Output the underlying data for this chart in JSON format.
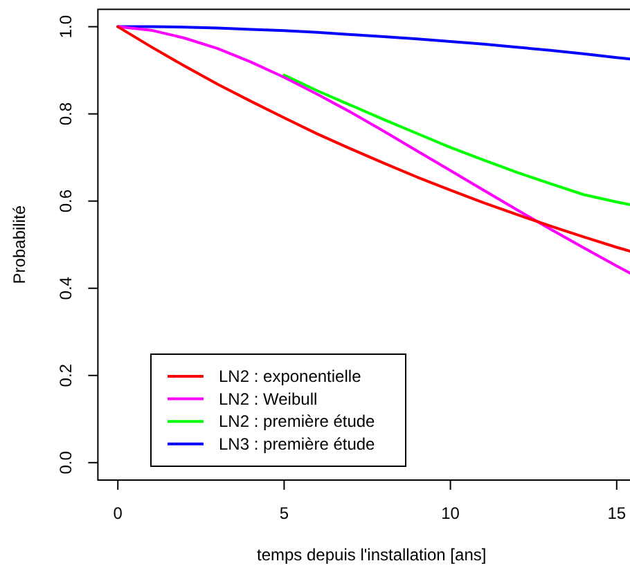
{
  "chart_data": {
    "type": "line",
    "xlabel": "temps depuis l'installation [ans]",
    "ylabel": "Probabilité",
    "x": [
      0,
      1,
      2,
      3,
      4,
      5,
      6,
      7,
      8,
      9,
      10,
      11,
      12,
      13,
      14,
      15,
      15.4
    ],
    "series": [
      {
        "name": "LN2 : exponentielle",
        "color": "#ff0000",
        "values": [
          1,
          0.954,
          0.91,
          0.868,
          0.829,
          0.791,
          0.754,
          0.72,
          0.687,
          0.655,
          0.625,
          0.596,
          0.569,
          0.543,
          0.518,
          0.494,
          0.485
        ]
      },
      {
        "name": "LN2 : Weibull",
        "color": "#ff00ff",
        "values": [
          1,
          0.992,
          0.974,
          0.95,
          0.919,
          0.884,
          0.845,
          0.804,
          0.76,
          0.715,
          0.67,
          0.625,
          0.58,
          0.536,
          0.493,
          0.451,
          0.435
        ]
      },
      {
        "name": "LN2 : première étude",
        "color": "#00ff00",
        "values": [
          null,
          null,
          null,
          null,
          null,
          0.889,
          0.853,
          0.82,
          0.787,
          0.755,
          0.723,
          0.694,
          0.666,
          0.64,
          0.615,
          0.598,
          0.592
        ]
      },
      {
        "name": "LN3 : première étude",
        "color": "#0000ff",
        "values": [
          1,
          1,
          0.999,
          0.997,
          0.994,
          0.991,
          0.987,
          0.982,
          0.977,
          0.972,
          0.966,
          0.96,
          0.953,
          0.946,
          0.938,
          0.929,
          0.926
        ]
      }
    ],
    "xlim": [
      -0.6,
      15.4
    ],
    "xticks": [
      0,
      5,
      10,
      15
    ],
    "ylim": [
      -0.04,
      1.04
    ],
    "yticks": [
      {
        "value": 0,
        "label": "0.0"
      },
      {
        "value": 0.2,
        "label": "0.2"
      },
      {
        "value": 0.4,
        "label": "0.4"
      },
      {
        "value": 0.6,
        "label": "0.6"
      },
      {
        "value": 0.8,
        "label": "0.8"
      },
      {
        "value": 1,
        "label": "1.0"
      }
    ],
    "grid": false,
    "legend": "bottom left",
    "line_style": "solid",
    "marker": "none"
  }
}
